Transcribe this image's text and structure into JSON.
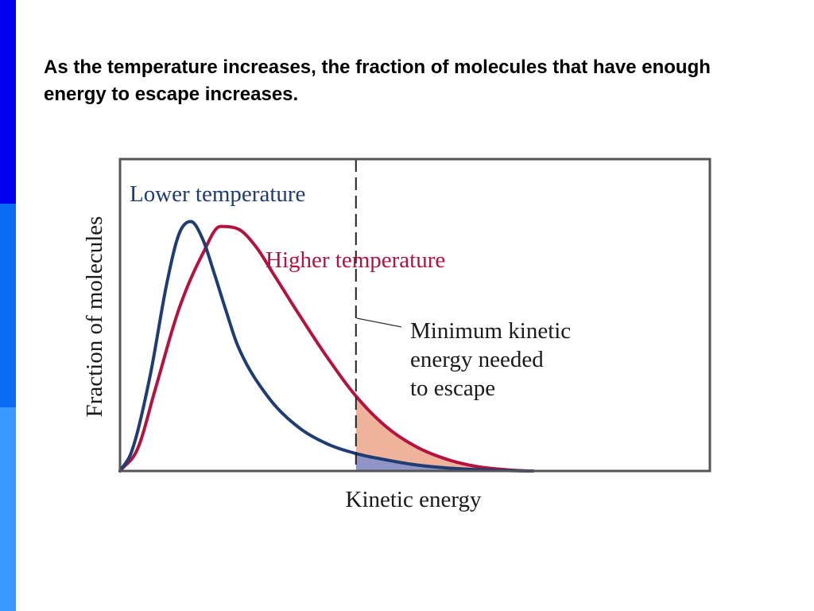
{
  "slide": {
    "title": "As the temperature increases, the fraction of molecules that have enough energy to escape increases."
  },
  "colors": {
    "sidebar": [
      "#0000ee",
      "#0a6cf5",
      "#3a99ff"
    ],
    "lower": "#1f3d72",
    "higher": "#b5123f",
    "fill_lower": "#8f95c6",
    "fill_higher": "#eeb39a",
    "frame": "#555555"
  },
  "chart_data": {
    "type": "line",
    "xlabel": "Kinetic energy",
    "ylabel": "Fraction of molecules",
    "series": [
      {
        "name": "Lower temperature",
        "x": [
          0,
          0.02,
          0.05,
          0.08,
          0.1,
          0.12,
          0.14,
          0.16,
          0.18,
          0.2,
          0.25,
          0.3,
          0.35,
          0.4,
          0.45,
          0.5,
          0.55,
          0.6,
          0.65,
          0.7,
          0.8
        ],
        "y": [
          0,
          0.08,
          0.37,
          0.76,
          0.95,
          1.0,
          0.93,
          0.79,
          0.64,
          0.5,
          0.3,
          0.18,
          0.11,
          0.07,
          0.045,
          0.025,
          0.013,
          0.006,
          0.002,
          0.0,
          0.0
        ]
      },
      {
        "name": "Higher temperature",
        "x": [
          0,
          0.03,
          0.06,
          0.1,
          0.14,
          0.17,
          0.2,
          0.23,
          0.26,
          0.3,
          0.35,
          0.4,
          0.45,
          0.5,
          0.55,
          0.6,
          0.65,
          0.7,
          0.8
        ],
        "y": [
          0,
          0.09,
          0.33,
          0.65,
          0.87,
          0.98,
          0.97,
          0.9,
          0.79,
          0.64,
          0.46,
          0.3,
          0.18,
          0.1,
          0.05,
          0.02,
          0.006,
          0.0,
          0.0
        ]
      }
    ],
    "threshold": {
      "x": 0.4,
      "label": [
        "Minimum kinetic",
        "energy needed",
        "to escape"
      ]
    },
    "xlim": [
      0,
      1
    ],
    "ylim": [
      0,
      1.25
    ],
    "grid": false
  }
}
